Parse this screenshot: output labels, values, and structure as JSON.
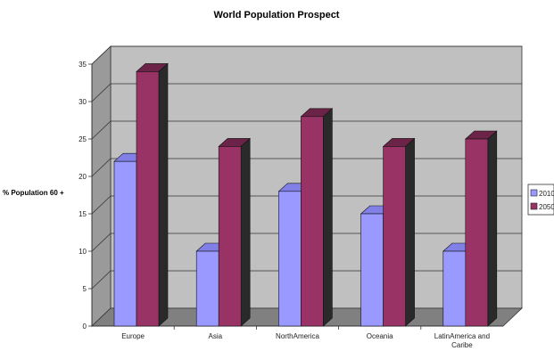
{
  "chart_data": {
    "type": "bar",
    "title": "World Population Prospect",
    "xlabel": "",
    "ylabel": "% Population 60 +",
    "categories": [
      "Europe",
      "Asia",
      "NorthAmerica",
      "Oceania",
      "LatinAmerica and Caribe"
    ],
    "category_lines": [
      [
        "Europe"
      ],
      [
        "Asia"
      ],
      [
        "NorthAmerica"
      ],
      [
        "Oceania"
      ],
      [
        "LatinAmerica and",
        "Caribe"
      ]
    ],
    "series": [
      {
        "name": "2010",
        "values": [
          22,
          10,
          18,
          15,
          10
        ]
      },
      {
        "name": "2050",
        "values": [
          34,
          24,
          28,
          24,
          25
        ]
      }
    ],
    "ylim": [
      0,
      35
    ],
    "yticks": [
      "0",
      "5",
      "10",
      "15",
      "20",
      "25",
      "30",
      "35"
    ],
    "grid": true,
    "legend_position": "right",
    "colors": {
      "series": [
        "#9999ff",
        "#993366"
      ],
      "series_top": [
        "#8080e6",
        "#6b2447"
      ],
      "series_side": [
        "#2a2a2a",
        "#2a2a2a"
      ],
      "wall": "#c0c0c0",
      "floor": "#808080",
      "side_wall": "#9a9a9a",
      "gridline": "#333333"
    }
  }
}
